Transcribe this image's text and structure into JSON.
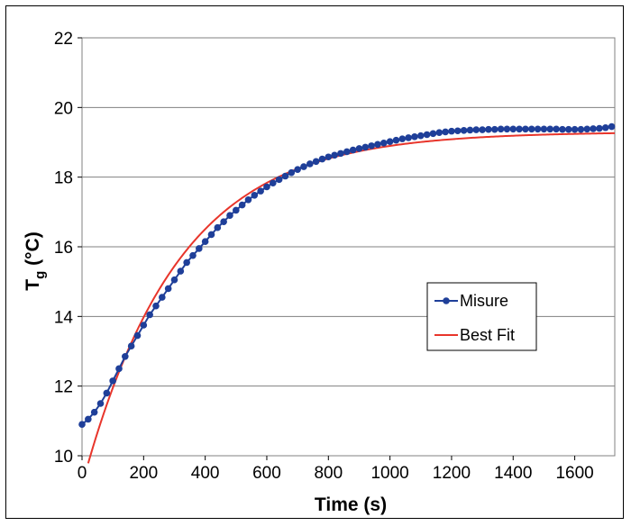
{
  "chart_data": {
    "type": "line",
    "title": "",
    "xlabel": "Time (s)",
    "ylabel_main": "T",
    "ylabel_sub": "g",
    "ylabel_rest": " (°C)",
    "xlim": [
      0,
      1730
    ],
    "ylim": [
      10,
      22
    ],
    "x_ticks": [
      0,
      200,
      400,
      600,
      800,
      1000,
      1200,
      1400,
      1600
    ],
    "y_ticks": [
      10,
      12,
      14,
      16,
      18,
      20,
      22
    ],
    "grid": "horizontal",
    "legend_placement": "center-right",
    "series": [
      {
        "name": "Misure",
        "color": "#1f3f99",
        "marker": "circle",
        "x": [
          0,
          20,
          40,
          60,
          80,
          100,
          120,
          140,
          160,
          180,
          200,
          220,
          240,
          260,
          280,
          300,
          320,
          340,
          360,
          380,
          400,
          420,
          440,
          460,
          480,
          500,
          520,
          540,
          560,
          580,
          600,
          620,
          640,
          660,
          680,
          700,
          720,
          740,
          760,
          780,
          800,
          820,
          840,
          860,
          880,
          900,
          920,
          940,
          960,
          980,
          1000,
          1020,
          1040,
          1060,
          1080,
          1100,
          1120,
          1140,
          1160,
          1180,
          1200,
          1220,
          1240,
          1260,
          1280,
          1300,
          1320,
          1340,
          1360,
          1380,
          1400,
          1420,
          1440,
          1460,
          1480,
          1500,
          1520,
          1540,
          1560,
          1580,
          1600,
          1620,
          1640,
          1660,
          1680,
          1700,
          1720
        ],
        "y": [
          10.9,
          11.05,
          11.25,
          11.5,
          11.8,
          12.15,
          12.5,
          12.85,
          13.15,
          13.45,
          13.75,
          14.05,
          14.3,
          14.55,
          14.8,
          15.05,
          15.3,
          15.55,
          15.75,
          15.95,
          16.15,
          16.35,
          16.55,
          16.72,
          16.9,
          17.05,
          17.2,
          17.35,
          17.48,
          17.6,
          17.72,
          17.83,
          17.93,
          18.03,
          18.13,
          18.22,
          18.3,
          18.38,
          18.45,
          18.52,
          18.58,
          18.63,
          18.68,
          18.73,
          18.78,
          18.82,
          18.86,
          18.9,
          18.94,
          18.98,
          19.02,
          19.06,
          19.1,
          19.13,
          19.16,
          19.19,
          19.22,
          19.25,
          19.28,
          19.3,
          19.32,
          19.33,
          19.34,
          19.35,
          19.36,
          19.36,
          19.37,
          19.37,
          19.38,
          19.38,
          19.38,
          19.38,
          19.38,
          19.38,
          19.38,
          19.38,
          19.38,
          19.38,
          19.37,
          19.37,
          19.37,
          19.37,
          19.38,
          19.39,
          19.4,
          19.42,
          19.45
        ]
      },
      {
        "name": "Best Fit",
        "color": "#e8352b",
        "marker": "none",
        "asymptote": 19.3,
        "start_value": 9.15,
        "time_constant": 310
      }
    ]
  }
}
